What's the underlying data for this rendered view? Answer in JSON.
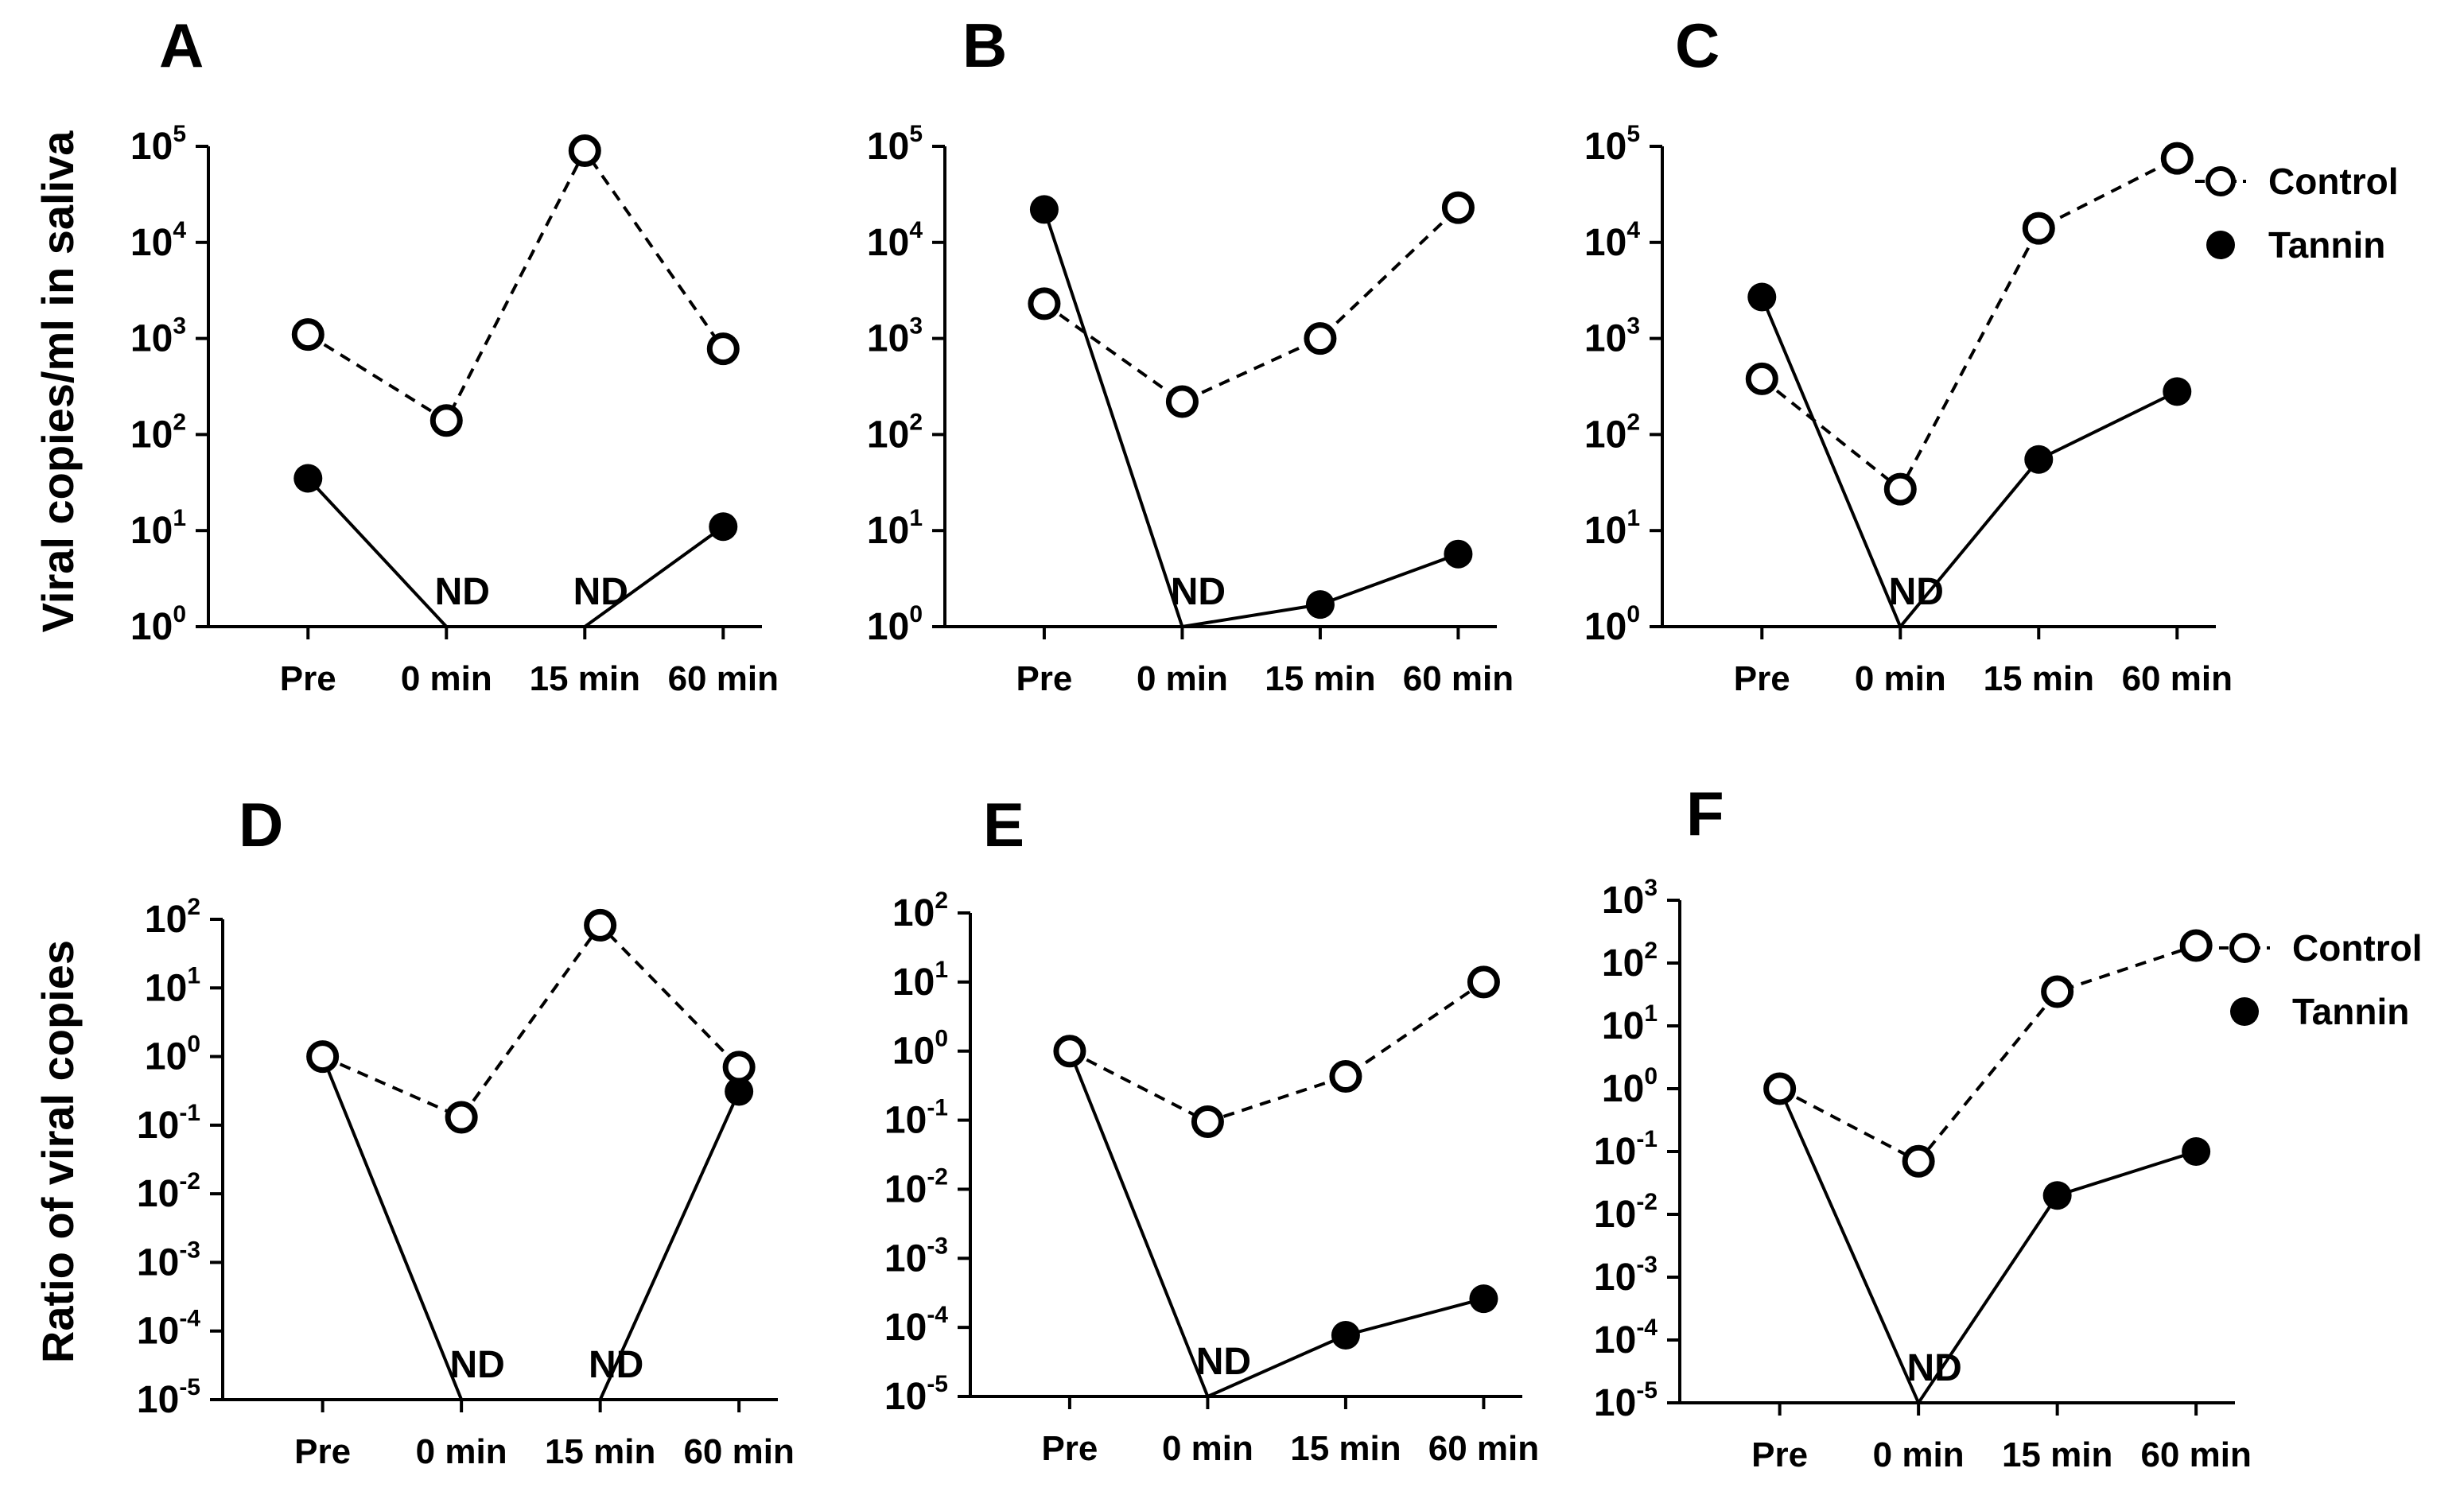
{
  "y_axis_labels": {
    "top_row": "Viral copies/ml in saliva",
    "bottom_row": "Ratio of viral copies"
  },
  "legend": {
    "control_label": "Control",
    "tannin_label": "Tannin"
  },
  "not_detected_label": "ND",
  "chart_data": [
    {
      "panel": "A",
      "type": "line",
      "yscale": "log",
      "ylim": [
        1,
        100000
      ],
      "ytick_exponents": [
        0,
        1,
        2,
        3,
        4,
        5
      ],
      "categories": [
        "Pre",
        "0 min",
        "15 min",
        "60 min"
      ],
      "series": [
        {
          "name": "Control",
          "marker": "open-circle",
          "line": "dashed",
          "values": [
            1100,
            140,
            90000,
            780
          ]
        },
        {
          "name": "Tannin",
          "marker": "filled-circle",
          "line": "solid",
          "values": [
            35,
            "ND",
            "ND",
            11
          ]
        }
      ]
    },
    {
      "panel": "B",
      "type": "line",
      "yscale": "log",
      "ylim": [
        1,
        100000
      ],
      "ytick_exponents": [
        0,
        1,
        2,
        3,
        4,
        5
      ],
      "categories": [
        "Pre",
        "0 min",
        "15 min",
        "60 min"
      ],
      "series": [
        {
          "name": "Control",
          "marker": "open-circle",
          "line": "dashed",
          "values": [
            2300,
            220,
            1000,
            23000
          ]
        },
        {
          "name": "Tannin",
          "marker": "filled-circle",
          "line": "solid",
          "values": [
            22000,
            "ND",
            1.7,
            5.7
          ]
        }
      ]
    },
    {
      "panel": "C",
      "type": "line",
      "yscale": "log",
      "ylim": [
        1,
        100000
      ],
      "ytick_exponents": [
        0,
        1,
        2,
        3,
        4,
        5
      ],
      "categories": [
        "Pre",
        "0 min",
        "15 min",
        "60 min"
      ],
      "series": [
        {
          "name": "Control",
          "marker": "open-circle",
          "line": "dashed",
          "values": [
            380,
            27,
            14000,
            75000
          ]
        },
        {
          "name": "Tannin",
          "marker": "filled-circle",
          "line": "solid",
          "values": [
            2700,
            "ND",
            55,
            280
          ]
        }
      ],
      "legend_position": "right"
    },
    {
      "panel": "D",
      "type": "line",
      "yscale": "log",
      "ylim": [
        1e-05,
        100
      ],
      "ytick_exponents": [
        -5,
        -4,
        -3,
        -2,
        -1,
        0,
        1,
        2
      ],
      "categories": [
        "Pre",
        "0 min",
        "15 min",
        "60 min"
      ],
      "series": [
        {
          "name": "Control",
          "marker": "open-circle",
          "line": "dashed",
          "values": [
            1,
            0.13,
            82,
            0.7
          ]
        },
        {
          "name": "Tannin",
          "marker": "filled-circle",
          "line": "solid",
          "values": [
            1,
            "ND",
            "ND",
            0.31
          ]
        }
      ]
    },
    {
      "panel": "E",
      "type": "line",
      "yscale": "log",
      "ylim": [
        1e-05,
        100
      ],
      "ytick_exponents": [
        -5,
        -4,
        -3,
        -2,
        -1,
        0,
        1,
        2
      ],
      "categories": [
        "Pre",
        "0 min",
        "15 min",
        "60 min"
      ],
      "series": [
        {
          "name": "Control",
          "marker": "open-circle",
          "line": "dashed",
          "values": [
            1,
            0.095,
            0.43,
            10
          ]
        },
        {
          "name": "Tannin",
          "marker": "filled-circle",
          "line": "solid",
          "values": [
            1,
            "ND",
            7.7e-05,
            0.00026
          ]
        }
      ]
    },
    {
      "panel": "F",
      "type": "line",
      "yscale": "log",
      "ylim": [
        1e-05,
        1000
      ],
      "ytick_exponents": [
        -5,
        -4,
        -3,
        -2,
        -1,
        0,
        1,
        2,
        3
      ],
      "categories": [
        "Pre",
        "0 min",
        "15 min",
        "60 min"
      ],
      "series": [
        {
          "name": "Control",
          "marker": "open-circle",
          "line": "dashed",
          "values": [
            1,
            0.07,
            35,
            190
          ]
        },
        {
          "name": "Tannin",
          "marker": "filled-circle",
          "line": "solid",
          "values": [
            1,
            "ND",
            0.02,
            0.1
          ]
        }
      ],
      "legend_position": "right"
    }
  ]
}
